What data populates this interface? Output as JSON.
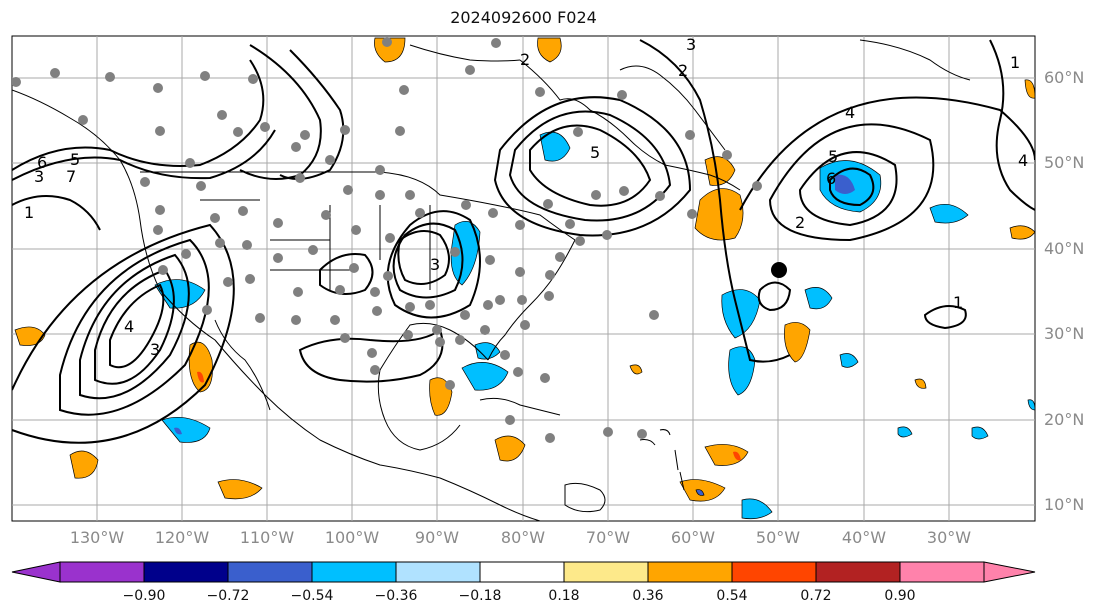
{
  "title": "2024092600 F024",
  "lat_labels": [
    "60°N",
    "50°N",
    "40°N",
    "30°N",
    "20°N",
    "10°N"
  ],
  "lon_labels": [
    "130°W",
    "120°W",
    "110°W",
    "100°W",
    "90°W",
    "80°W",
    "70°W",
    "60°W",
    "50°W",
    "40°W",
    "30°W"
  ],
  "colorbar": {
    "ticks": [
      "−0.90",
      "−0.72",
      "−0.54",
      "−0.36",
      "−0.18",
      "0.18",
      "0.36",
      "0.54",
      "0.72",
      "0.90"
    ],
    "colors": [
      "#9a32cd",
      "#00008b",
      "#3a5fcd",
      "#00bfff",
      "#b0e2ff",
      "#ffffff",
      "#fde98a",
      "#ffa500",
      "#ff4500",
      "#b22222",
      "#ff82ab"
    ]
  },
  "contour_labels": [
    "2",
    "2",
    "2",
    "3",
    "3",
    "4",
    "4",
    "4",
    "5",
    "5",
    "5",
    "6",
    "6",
    "7",
    "1",
    "1",
    "1",
    "3",
    "3"
  ],
  "colors": {
    "contour": "#000000",
    "gray_marker": "#808080",
    "storm_marker": "#000000"
  }
}
